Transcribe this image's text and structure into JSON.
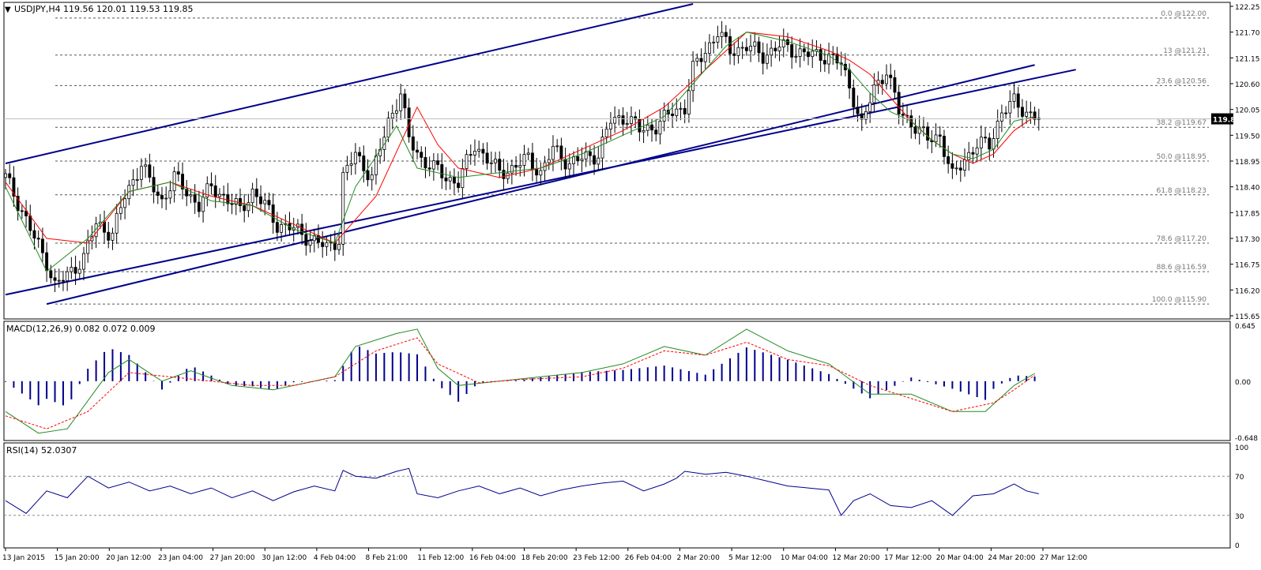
{
  "header": {
    "symbol_tf": "USDJPY,H4",
    "ohlc": "119.56 120.01 119.53 119.85",
    "macd_label": "MACD(12,26,9) 0.082 0.072 0.009",
    "rsi_label": "RSI(14) 52.0307"
  },
  "colors": {
    "channel": "#00008b",
    "ma_fast": "#228b22",
    "ma_slow": "#ff0000",
    "macd_line": "#228b22",
    "signal_line": "#ff0000",
    "histogram": "#00008b",
    "rsi": "#00008b",
    "candle": "#000000"
  },
  "chart_data": [
    {
      "type": "candlestick",
      "title": "USDJPY,H4",
      "ylim": [
        115.65,
        122.25
      ],
      "price_axis_ticks": [
        "122.25",
        "121.70",
        "121.15",
        "120.60",
        "120.05",
        "119.50",
        "118.95",
        "118.40",
        "117.85",
        "117.30",
        "116.75",
        "116.20",
        "115.65"
      ],
      "current_price": "119.85",
      "x_tick_labels": [
        "13 Jan 2015",
        "15 Jan 20:00",
        "20 Jan 12:00",
        "23 Jan 04:00",
        "27 Jan 20:00",
        "30 Jan 12:00",
        "4 Feb 04:00",
        "8 Feb 21:00",
        "11 Feb 12:00",
        "16 Feb 04:00",
        "18 Feb 20:00",
        "23 Feb 12:00",
        "26 Feb 04:00",
        "2 Mar 20:00",
        "5 Mar 12:00",
        "10 Mar 04:00",
        "12 Mar 20:00",
        "17 Mar 12:00",
        "20 Mar 04:00",
        "24 Mar 20:00",
        "27 Mar 12:00"
      ],
      "fibonacci_levels": [
        {
          "label": "0.0 @122.00",
          "price": 122.0
        },
        {
          "label": "13 @121.21",
          "price": 121.21
        },
        {
          "label": "23.6 @120.56",
          "price": 120.56
        },
        {
          "label": "38.2 @119.67",
          "price": 119.67
        },
        {
          "label": "50.0 @118.95",
          "price": 118.95
        },
        {
          "label": "61.8 @118.23",
          "price": 118.23
        },
        {
          "label": "78.6 @117.20",
          "price": 117.2
        },
        {
          "label": "88.6 @116.59",
          "price": 116.59
        },
        {
          "label": "100.0 @115.90",
          "price": 115.9
        }
      ],
      "close_path": [
        [
          0,
          118.6
        ],
        [
          4,
          117.9
        ],
        [
          7,
          117.3
        ],
        [
          10,
          116.8
        ],
        [
          12,
          116.3
        ],
        [
          15,
          116.5
        ],
        [
          19,
          116.9
        ],
        [
          22,
          117.6
        ],
        [
          26,
          117.4
        ],
        [
          29,
          118.2
        ],
        [
          33,
          118.9
        ],
        [
          35,
          118.5
        ],
        [
          38,
          118.1
        ],
        [
          41,
          118.6
        ],
        [
          44,
          118.3
        ],
        [
          47,
          118.0
        ],
        [
          50,
          118.4
        ],
        [
          53,
          118.2
        ],
        [
          57,
          117.9
        ],
        [
          60,
          118.3
        ],
        [
          63,
          118.0
        ],
        [
          66,
          117.6
        ],
        [
          70,
          117.5
        ],
        [
          74,
          117.3
        ],
        [
          78,
          117.1
        ],
        [
          81,
          117.3
        ],
        [
          82,
          118.6
        ],
        [
          85,
          119.1
        ],
        [
          89,
          118.6
        ],
        [
          93,
          119.8
        ],
        [
          96,
          120.4
        ],
        [
          98,
          119.4
        ],
        [
          101,
          119.0
        ],
        [
          104,
          118.8
        ],
        [
          107,
          118.6
        ],
        [
          110,
          118.5
        ],
        [
          114,
          119.3
        ],
        [
          117,
          119.0
        ],
        [
          120,
          118.7
        ],
        [
          123,
          118.8
        ],
        [
          127,
          119.0
        ],
        [
          130,
          118.7
        ],
        [
          133,
          119.2
        ],
        [
          137,
          118.9
        ],
        [
          140,
          119.0
        ],
        [
          144,
          119.1
        ],
        [
          147,
          119.8
        ],
        [
          151,
          119.9
        ],
        [
          154,
          119.6
        ],
        [
          158,
          119.7
        ],
        [
          162,
          120.0
        ],
        [
          165,
          120.1
        ],
        [
          167,
          120.9
        ],
        [
          170,
          121.3
        ],
        [
          173,
          121.7
        ],
        [
          176,
          121.3
        ],
        [
          180,
          121.4
        ],
        [
          184,
          121.2
        ],
        [
          188,
          121.4
        ],
        [
          192,
          121.3
        ],
        [
          196,
          121.2
        ],
        [
          200,
          121.2
        ],
        [
          203,
          121.0
        ],
        [
          206,
          120.3
        ],
        [
          208,
          119.7
        ],
        [
          211,
          120.5
        ],
        [
          214,
          120.9
        ],
        [
          217,
          120.0
        ],
        [
          221,
          119.7
        ],
        [
          224,
          119.4
        ],
        [
          227,
          119.5
        ],
        [
          230,
          118.6
        ],
        [
          233,
          119.0
        ],
        [
          236,
          119.3
        ],
        [
          239,
          119.3
        ],
        [
          242,
          120.0
        ],
        [
          245,
          120.2
        ],
        [
          248,
          120.0
        ],
        [
          251,
          119.85
        ]
      ],
      "moving_averages": {
        "fast_green": [
          [
            0,
            118.4
          ],
          [
            10,
            116.6
          ],
          [
            20,
            117.3
          ],
          [
            30,
            118.3
          ],
          [
            40,
            118.5
          ],
          [
            50,
            118.1
          ],
          [
            60,
            118.0
          ],
          [
            70,
            117.5
          ],
          [
            80,
            117.2
          ],
          [
            85,
            118.4
          ],
          [
            95,
            119.7
          ],
          [
            100,
            118.8
          ],
          [
            110,
            118.6
          ],
          [
            120,
            118.7
          ],
          [
            130,
            118.8
          ],
          [
            140,
            119.1
          ],
          [
            150,
            119.5
          ],
          [
            160,
            119.9
          ],
          [
            170,
            120.9
          ],
          [
            175,
            121.4
          ],
          [
            180,
            121.7
          ],
          [
            190,
            121.5
          ],
          [
            200,
            121.2
          ],
          [
            205,
            120.9
          ],
          [
            210,
            120.4
          ],
          [
            215,
            120.0
          ],
          [
            220,
            119.8
          ],
          [
            225,
            119.4
          ],
          [
            230,
            119.1
          ],
          [
            235,
            119.0
          ],
          [
            240,
            119.2
          ],
          [
            245,
            119.8
          ],
          [
            250,
            119.9
          ]
        ],
        "slow_red": [
          [
            0,
            118.5
          ],
          [
            10,
            117.3
          ],
          [
            20,
            117.2
          ],
          [
            30,
            118.3
          ],
          [
            40,
            118.5
          ],
          [
            50,
            118.2
          ],
          [
            60,
            118.0
          ],
          [
            70,
            117.6
          ],
          [
            80,
            117.2
          ],
          [
            90,
            118.2
          ],
          [
            100,
            120.1
          ],
          [
            105,
            119.3
          ],
          [
            110,
            118.8
          ],
          [
            120,
            118.6
          ],
          [
            130,
            118.8
          ],
          [
            140,
            119.2
          ],
          [
            150,
            119.6
          ],
          [
            160,
            120.1
          ],
          [
            170,
            120.9
          ],
          [
            180,
            121.7
          ],
          [
            190,
            121.6
          ],
          [
            200,
            121.3
          ],
          [
            205,
            121.1
          ],
          [
            210,
            120.8
          ],
          [
            215,
            120.3
          ],
          [
            220,
            119.8
          ],
          [
            225,
            119.4
          ],
          [
            230,
            119.1
          ],
          [
            235,
            118.9
          ],
          [
            240,
            119.1
          ],
          [
            245,
            119.6
          ],
          [
            250,
            119.9
          ]
        ]
      },
      "regression_channel": {
        "upper": [
          [
            0,
            118.9
          ],
          [
            167,
            122.3
          ]
        ],
        "middle": [
          [
            0,
            116.1
          ],
          [
            260,
            120.9
          ]
        ],
        "lower": [
          [
            10,
            115.9
          ],
          [
            250,
            121.0
          ]
        ]
      }
    },
    {
      "type": "line",
      "title": "MACD(12,26,9)",
      "ylim": [
        -0.648,
        0.645
      ],
      "axis_ticks": [
        "0.645",
        "0.00",
        "-0.648"
      ],
      "series": [
        {
          "name": "MACD",
          "points": [
            [
              0,
              -0.35
            ],
            [
              8,
              -0.6
            ],
            [
              15,
              -0.55
            ],
            [
              25,
              0.1
            ],
            [
              30,
              0.25
            ],
            [
              38,
              0.0
            ],
            [
              45,
              0.12
            ],
            [
              55,
              -0.05
            ],
            [
              65,
              -0.1
            ],
            [
              75,
              0.0
            ],
            [
              80,
              0.05
            ],
            [
              85,
              0.4
            ],
            [
              95,
              0.55
            ],
            [
              100,
              0.6
            ],
            [
              105,
              0.15
            ],
            [
              110,
              -0.05
            ],
            [
              120,
              0.0
            ],
            [
              130,
              0.05
            ],
            [
              140,
              0.1
            ],
            [
              150,
              0.2
            ],
            [
              160,
              0.4
            ],
            [
              170,
              0.3
            ],
            [
              180,
              0.6
            ],
            [
              190,
              0.35
            ],
            [
              200,
              0.2
            ],
            [
              210,
              -0.15
            ],
            [
              220,
              -0.15
            ],
            [
              230,
              -0.35
            ],
            [
              238,
              -0.35
            ],
            [
              245,
              -0.05
            ],
            [
              250,
              0.09
            ]
          ]
        },
        {
          "name": "Signal",
          "points": [
            [
              0,
              -0.4
            ],
            [
              10,
              -0.55
            ],
            [
              20,
              -0.35
            ],
            [
              30,
              0.1
            ],
            [
              40,
              0.05
            ],
            [
              50,
              0.0
            ],
            [
              60,
              -0.05
            ],
            [
              70,
              -0.05
            ],
            [
              80,
              0.05
            ],
            [
              90,
              0.35
            ],
            [
              100,
              0.5
            ],
            [
              105,
              0.2
            ],
            [
              115,
              -0.02
            ],
            [
              125,
              0.02
            ],
            [
              140,
              0.05
            ],
            [
              150,
              0.15
            ],
            [
              160,
              0.35
            ],
            [
              170,
              0.3
            ],
            [
              180,
              0.45
            ],
            [
              190,
              0.25
            ],
            [
              200,
              0.18
            ],
            [
              210,
              -0.05
            ],
            [
              220,
              -0.2
            ],
            [
              230,
              -0.35
            ],
            [
              240,
              -0.25
            ],
            [
              245,
              -0.1
            ],
            [
              250,
              0.07
            ]
          ]
        }
      ]
    },
    {
      "type": "line",
      "title": "RSI(14)",
      "ylim": [
        0,
        100
      ],
      "axis_ticks": [
        "100",
        "70",
        "30",
        "0"
      ],
      "series": [
        {
          "name": "RSI",
          "points": [
            [
              0,
              45
            ],
            [
              5,
              32
            ],
            [
              10,
              55
            ],
            [
              15,
              48
            ],
            [
              20,
              70
            ],
            [
              25,
              58
            ],
            [
              30,
              64
            ],
            [
              35,
              55
            ],
            [
              40,
              60
            ],
            [
              45,
              52
            ],
            [
              50,
              58
            ],
            [
              55,
              48
            ],
            [
              60,
              55
            ],
            [
              65,
              45
            ],
            [
              70,
              54
            ],
            [
              75,
              60
            ],
            [
              80,
              55
            ],
            [
              82,
              76
            ],
            [
              85,
              70
            ],
            [
              90,
              68
            ],
            [
              95,
              75
            ],
            [
              98,
              78
            ],
            [
              100,
              52
            ],
            [
              105,
              48
            ],
            [
              110,
              55
            ],
            [
              115,
              60
            ],
            [
              120,
              52
            ],
            [
              125,
              58
            ],
            [
              130,
              50
            ],
            [
              135,
              56
            ],
            [
              140,
              60
            ],
            [
              145,
              63
            ],
            [
              150,
              65
            ],
            [
              155,
              55
            ],
            [
              160,
              62
            ],
            [
              163,
              68
            ],
            [
              165,
              75
            ],
            [
              170,
              72
            ],
            [
              175,
              74
            ],
            [
              180,
              70
            ],
            [
              185,
              65
            ],
            [
              190,
              60
            ],
            [
              195,
              58
            ],
            [
              200,
              56
            ],
            [
              203,
              30
            ],
            [
              206,
              45
            ],
            [
              210,
              52
            ],
            [
              215,
              40
            ],
            [
              220,
              38
            ],
            [
              225,
              45
            ],
            [
              230,
              30
            ],
            [
              235,
              50
            ],
            [
              240,
              52
            ],
            [
              245,
              62
            ],
            [
              248,
              55
            ],
            [
              251,
              52
            ]
          ]
        }
      ]
    }
  ]
}
